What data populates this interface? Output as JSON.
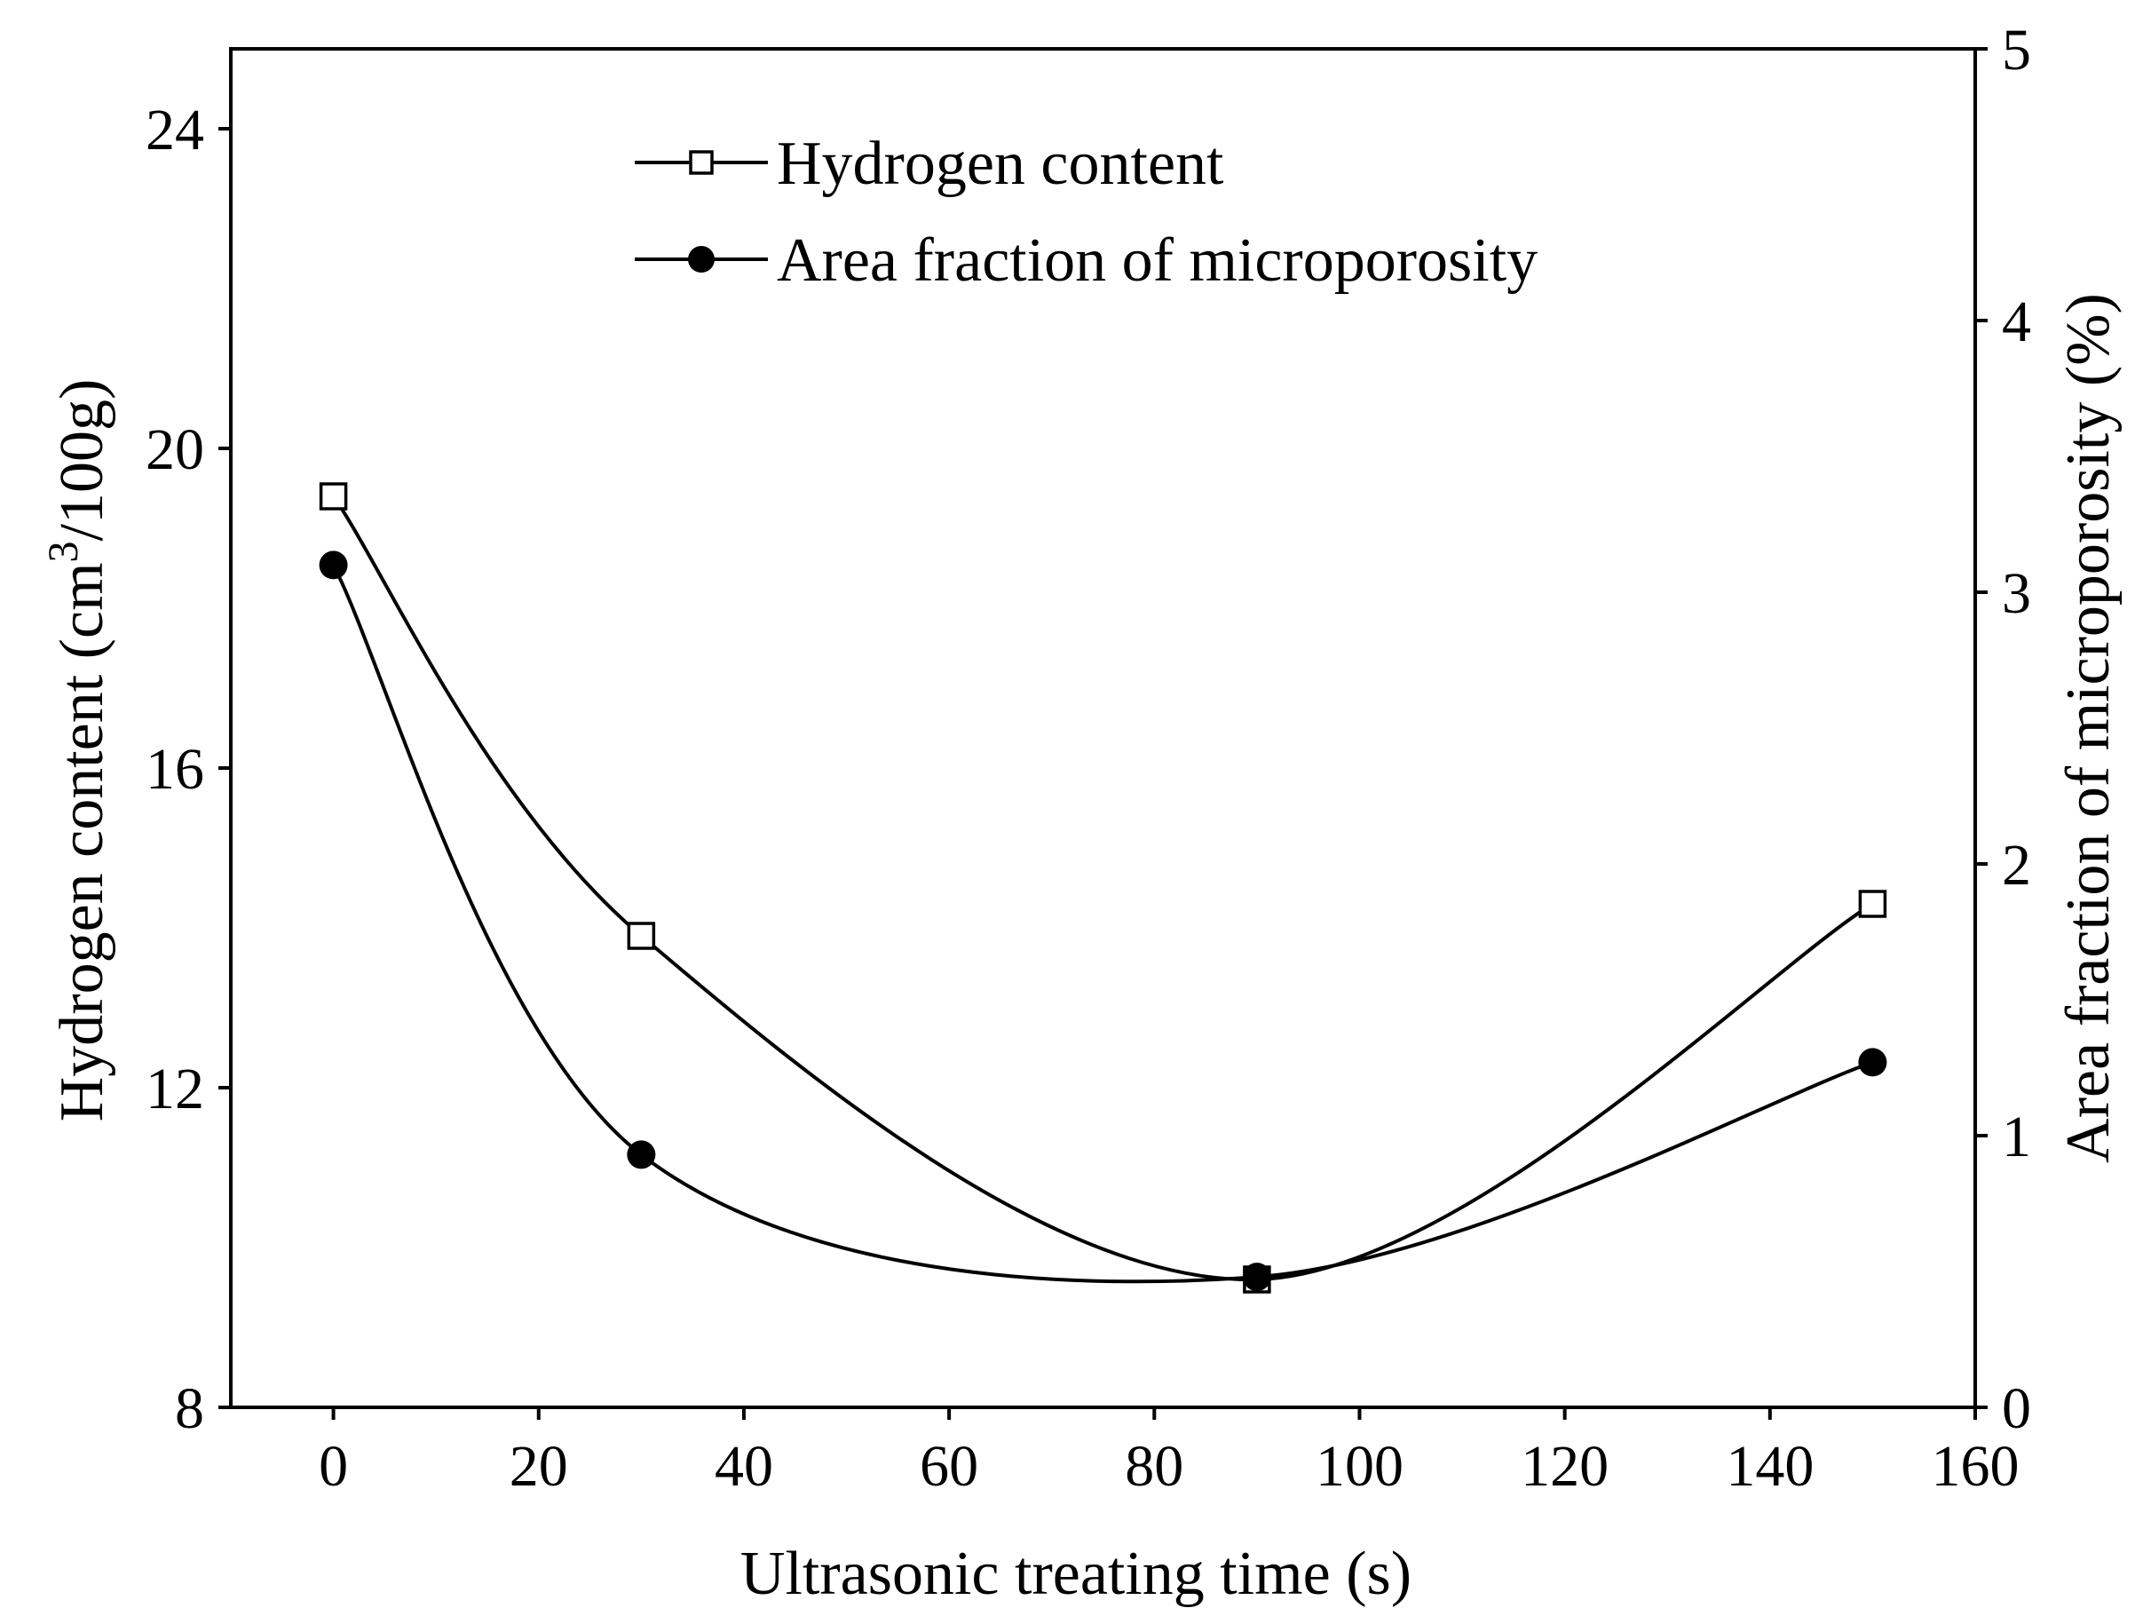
{
  "chart_data": {
    "type": "line",
    "title": "",
    "xlabel": "Ultrasonic treating time (s)",
    "ylabel_left": {
      "prefix": "Hydrogen content (cm",
      "superscript": "3",
      "suffix": "/100g)"
    },
    "ylabel_right": "Area fraction of microporosity (%)",
    "xlim": [
      -10,
      160
    ],
    "ylim_left": [
      8,
      25
    ],
    "ylim_right": [
      0,
      5
    ],
    "x_ticks": [
      "0",
      "20",
      "40",
      "60",
      "80",
      "100",
      "120",
      "140",
      "160"
    ],
    "x_tick_values": [
      0,
      20,
      40,
      60,
      80,
      100,
      120,
      140,
      160
    ],
    "y_left_ticks": [
      "8",
      "12",
      "16",
      "20",
      "24"
    ],
    "y_left_tick_values": [
      8,
      12,
      16,
      20,
      24
    ],
    "y_right_ticks": [
      "0",
      "1",
      "2",
      "3",
      "4",
      "5"
    ],
    "y_right_tick_values": [
      0,
      1,
      2,
      3,
      4,
      5
    ],
    "legend_position": "top-center",
    "series": [
      {
        "name": "Hydrogen content",
        "axis": "left",
        "marker": "open-square",
        "x": [
          0,
          30,
          90,
          150
        ],
        "values": [
          19.4,
          13.9,
          9.6,
          14.3
        ]
      },
      {
        "name": "Area fraction of microporosity",
        "axis": "right",
        "marker": "filled-circle",
        "x": [
          0,
          30,
          90,
          150
        ],
        "values": [
          3.1,
          0.93,
          0.48,
          1.27
        ]
      }
    ]
  }
}
